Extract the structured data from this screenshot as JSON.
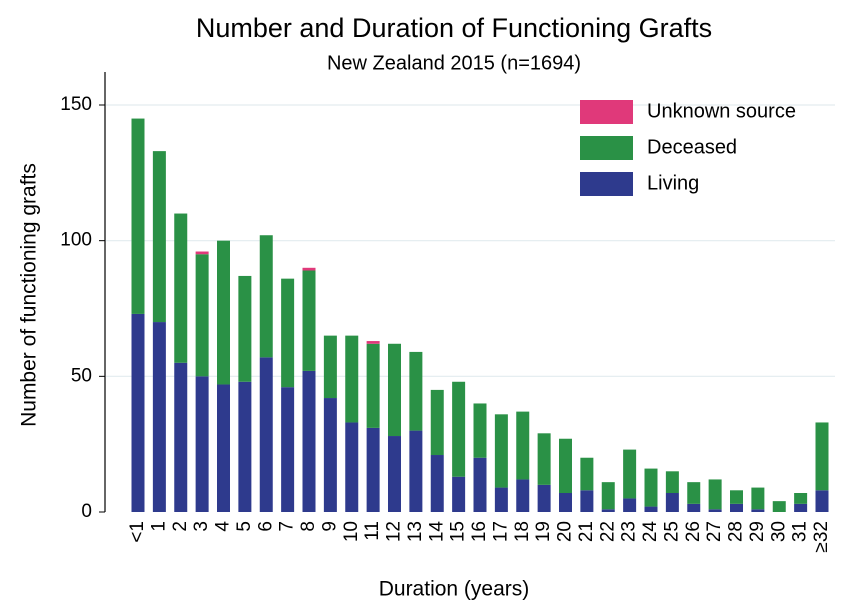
{
  "chart_data": {
    "type": "stacked_bar",
    "title": "Number and Duration of Functioning Grafts",
    "subtitle": "New Zealand 2015 (n=1694)",
    "x_label": "Duration (years)",
    "y_label": "Number of functioning grafts",
    "categories": [
      "<1",
      "1",
      "2",
      "3",
      "4",
      "5",
      "6",
      "7",
      "8",
      "9",
      "10",
      "11",
      "12",
      "13",
      "14",
      "15",
      "16",
      "17",
      "18",
      "19",
      "20",
      "21",
      "22",
      "23",
      "24",
      "25",
      "26",
      "27",
      "28",
      "29",
      "30",
      "31",
      "≥32"
    ],
    "series": [
      {
        "name": "Living",
        "color": "#2e3a8d",
        "values": [
          73,
          70,
          55,
          50,
          47,
          48,
          57,
          46,
          52,
          42,
          33,
          31,
          28,
          30,
          21,
          13,
          20,
          9,
          12,
          10,
          7,
          8,
          1,
          5,
          2,
          7,
          3,
          1,
          3,
          1,
          0,
          3,
          8
        ]
      },
      {
        "name": "Deceased",
        "color": "#2a9146",
        "values": [
          72,
          63,
          55,
          45,
          53,
          39,
          45,
          40,
          37,
          23,
          32,
          31,
          34,
          29,
          24,
          35,
          20,
          27,
          25,
          19,
          20,
          12,
          10,
          18,
          14,
          8,
          8,
          11,
          5,
          8,
          4,
          4,
          25
        ]
      },
      {
        "name": "Unknown source",
        "color": "#e0397a",
        "values": [
          0,
          0,
          0,
          1,
          0,
          0,
          0,
          0,
          1,
          0,
          0,
          1,
          0,
          0,
          0,
          0,
          0,
          0,
          0,
          0,
          0,
          0,
          0,
          0,
          0,
          0,
          0,
          0,
          0,
          0,
          0,
          0,
          0
        ]
      }
    ],
    "ylim": [
      0,
      150
    ],
    "yticks": [
      0,
      50,
      100,
      150
    ],
    "grid": true,
    "legend": "top-right"
  }
}
